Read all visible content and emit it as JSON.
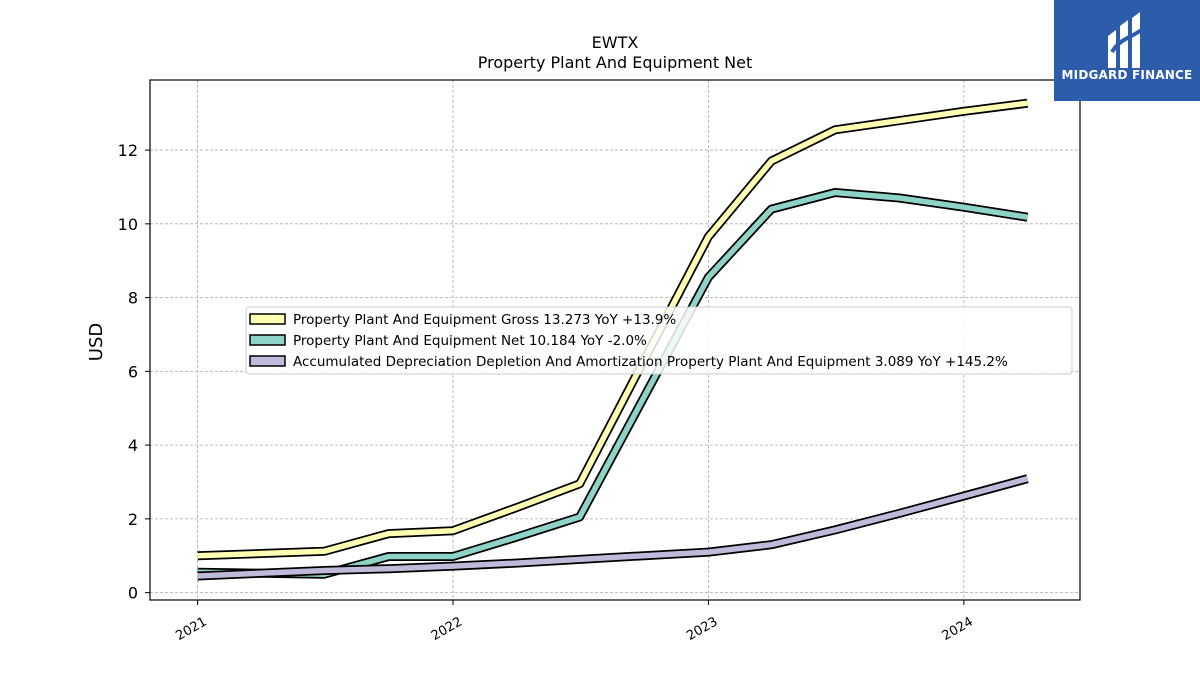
{
  "chart_data": {
    "type": "line",
    "title": "EWTX",
    "subtitle": "Property Plant And Equipment Net",
    "ylabel": "USD",
    "xlabel": "",
    "x_ticks": [
      "2021",
      "2022",
      "2023",
      "2024"
    ],
    "y_ticks": [
      "0",
      "2",
      "4",
      "6",
      "8",
      "10",
      "12"
    ],
    "xlim": [
      "2020-10-25",
      "2024-06-15"
    ],
    "ylim": [
      -0.2,
      13.9
    ],
    "grid": true,
    "legend_position": "center",
    "series": [
      {
        "name": "Property Plant And Equipment Gross  13.273 YoY +13.9%",
        "color": "#ffffb3",
        "x": [
          "2021-01-01",
          "2021-07-01",
          "2021-10-01",
          "2022-01-01",
          "2022-04-01",
          "2022-07-01",
          "2022-10-01",
          "2023-01-01",
          "2023-04-01",
          "2023-07-01",
          "2023-10-01",
          "2024-01-01",
          "2024-04-01"
        ],
        "y": [
          1.0,
          1.12,
          1.6,
          1.68,
          2.3,
          2.95,
          6.3,
          9.65,
          11.7,
          12.55,
          12.8,
          13.05,
          13.27
        ]
      },
      {
        "name": "Property Plant And Equipment Net  10.184 YoY -2.0%",
        "color": "#8dd3c7",
        "x": [
          "2021-01-01",
          "2021-07-01",
          "2021-10-01",
          "2022-01-01",
          "2022-04-01",
          "2022-07-01",
          "2022-10-01",
          "2023-01-01",
          "2023-04-01",
          "2023-07-01",
          "2023-10-01",
          "2024-01-01",
          "2024-04-01"
        ],
        "y": [
          0.55,
          0.5,
          0.98,
          0.98,
          1.5,
          2.05,
          5.3,
          8.55,
          10.4,
          10.85,
          10.7,
          10.45,
          10.18
        ]
      },
      {
        "name": "Accumulated Depreciation Depletion And Amortization Property Plant And Equipment  3.089 YoY +145.2%",
        "color": "#bebada",
        "x": [
          "2021-01-01",
          "2021-07-01",
          "2021-10-01",
          "2022-01-01",
          "2022-04-01",
          "2022-07-01",
          "2022-10-01",
          "2023-01-01",
          "2023-04-01",
          "2023-07-01",
          "2023-10-01",
          "2024-01-01",
          "2024-04-01"
        ],
        "y": [
          0.45,
          0.6,
          0.65,
          0.72,
          0.8,
          0.9,
          1.0,
          1.1,
          1.3,
          1.7,
          2.15,
          2.62,
          3.09
        ]
      }
    ]
  },
  "brand": {
    "name": "MIDGARD FINANCE",
    "background": "#2d5cab",
    "icon": "midgard-logo-icon"
  }
}
